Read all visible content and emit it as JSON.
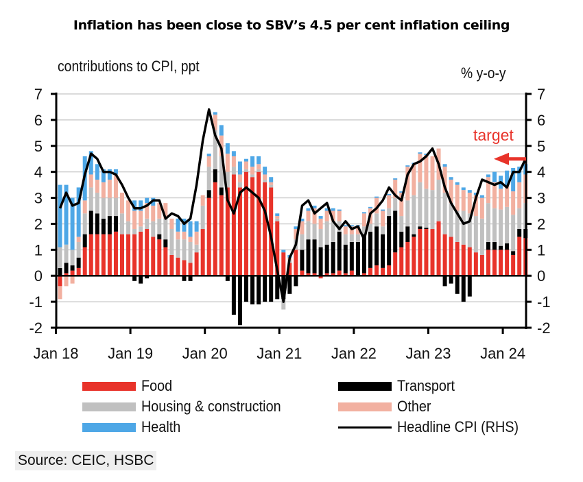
{
  "title": "Inflation has been close to SBV’s 4.5 per cent inflation ceiling",
  "source": "Source: CEIC, HSBC",
  "chart_data": {
    "type": "bar",
    "stacked": true,
    "title": "Inflation has been close to SBV’s 4.5 per cent inflation ceiling",
    "ylabel": "contributions  to CPI, ppt",
    "ylabel_right": "% y-o-y",
    "ylim": [
      -2,
      7
    ],
    "ylim_right": [
      -2,
      7
    ],
    "yticks": [
      "-2",
      "-1",
      "0",
      "1",
      "2",
      "3",
      "4",
      "5",
      "6",
      "7"
    ],
    "xtick_labels": [
      "Jan 18",
      "Jan 19",
      "Jan 20",
      "Jan 21",
      "Jan 22",
      "Jan 23",
      "Jan 24"
    ],
    "grid": true,
    "legend_position": "bottom",
    "annotation": {
      "text": "target",
      "value": 4.5,
      "color": "#e8332a"
    },
    "colors": {
      "Food": "#e8332a",
      "Transport": "#000000",
      "Housing & construction": "#c0c0c0",
      "Other": "#f2b0a0",
      "Health": "#4ea7e6",
      "Headline CPI (RHS)": "#000000"
    },
    "legend": [
      "Food",
      "Transport",
      "Housing & construction",
      "Other",
      "Health",
      "Headline CPI (RHS)"
    ],
    "x": [
      "Jan 18",
      "Feb 18",
      "Mar 18",
      "Apr 18",
      "May 18",
      "Jun 18",
      "Jul 18",
      "Aug 18",
      "Sep 18",
      "Oct 18",
      "Nov 18",
      "Dec 18",
      "Jan 19",
      "Feb 19",
      "Mar 19",
      "Apr 19",
      "May 19",
      "Jun 19",
      "Jul 19",
      "Aug 19",
      "Sep 19",
      "Oct 19",
      "Nov 19",
      "Dec 19",
      "Jan 20",
      "Feb 20",
      "Mar 20",
      "Apr 20",
      "May 20",
      "Jun 20",
      "Jul 20",
      "Aug 20",
      "Sep 20",
      "Oct 20",
      "Nov 20",
      "Dec 20",
      "Jan 21",
      "Feb 21",
      "Mar 21",
      "Apr 21",
      "May 21",
      "Jun 21",
      "Jul 21",
      "Aug 21",
      "Sep 21",
      "Oct 21",
      "Nov 21",
      "Dec 21",
      "Jan 22",
      "Feb 22",
      "Mar 22",
      "Apr 22",
      "May 22",
      "Jun 22",
      "Jul 22",
      "Aug 22",
      "Sep 22",
      "Oct 22",
      "Nov 22",
      "Dec 22",
      "Jan 23",
      "Feb 23",
      "Mar 23",
      "Apr 23",
      "May 23",
      "Jun 23",
      "Jul 23",
      "Aug 23",
      "Sep 23",
      "Oct 23",
      "Nov 23",
      "Dec 23",
      "Jan 24",
      "Feb 24",
      "Mar 24",
      "Apr 24"
    ],
    "series": [
      {
        "name": "Food",
        "values": [
          -0.4,
          0.1,
          0.2,
          0.3,
          1.1,
          1.6,
          1.6,
          1.6,
          1.6,
          1.7,
          1.6,
          1.6,
          1.6,
          1.7,
          1.8,
          1.5,
          1.4,
          1.1,
          0.8,
          0.7,
          0.6,
          0.5,
          0.9,
          1.8,
          3.0,
          3.6,
          3.1,
          3.4,
          3.9,
          3.4,
          4.0,
          3.8,
          4.0,
          3.6,
          3.4,
          2.1,
          0.9,
          0.5,
          1.0,
          0.2,
          0.1,
          0.1,
          -0.1,
          0.1,
          0.1,
          0.2,
          0.1,
          0.2,
          0.0,
          0.1,
          0.3,
          0.4,
          0.3,
          0.4,
          0.9,
          1.1,
          1.3,
          1.5,
          1.8,
          1.8,
          1.8,
          2.1,
          1.6,
          1.5,
          1.3,
          1.2,
          1.1,
          0.9,
          0.8,
          1.0,
          1.0,
          1.0,
          1.0,
          0.8,
          1.5,
          1.45
        ]
      },
      {
        "name": "Transport",
        "values": [
          0.3,
          0.4,
          0.2,
          0.4,
          0.5,
          0.9,
          0.8,
          0.6,
          0.7,
          0.6,
          0.0,
          0.0,
          -0.2,
          -0.3,
          -0.1,
          0.0,
          0.2,
          0.3,
          0.0,
          0.0,
          -0.2,
          -0.2,
          0.0,
          0.0,
          0.3,
          0.5,
          0.3,
          -0.2,
          -1.5,
          -1.9,
          -1.0,
          -1.1,
          -1.1,
          -1.0,
          -1.0,
          -0.9,
          -0.9,
          -0.7,
          -0.4,
          0.8,
          1.3,
          1.3,
          1.1,
          1.1,
          1.2,
          1.5,
          1.1,
          1.1,
          1.3,
          1.5,
          1.4,
          1.5,
          1.3,
          1.9,
          1.6,
          0.6,
          0.6,
          0.1,
          0.1,
          0.05,
          0.0,
          0.0,
          -0.4,
          -0.3,
          -0.7,
          -1.0,
          -0.8,
          0.0,
          0.0,
          0.3,
          0.3,
          0.15,
          0.25,
          0.15,
          0.3,
          0.35
        ]
      },
      {
        "name": "Housing & construction",
        "values": [
          0.8,
          0.7,
          0.6,
          0.6,
          0.8,
          0.9,
          0.8,
          0.8,
          0.7,
          0.7,
          0.8,
          0.5,
          0.2,
          0.2,
          0.4,
          0.6,
          0.6,
          0.8,
          1.0,
          0.7,
          0.8,
          0.8,
          0.3,
          0.9,
          0.9,
          1.5,
          1.2,
          0.6,
          0.3,
          0.2,
          0.1,
          0.1,
          0.1,
          0.1,
          0.1,
          0.1,
          -0.4,
          0.1,
          0.4,
          0.6,
          0.7,
          0.6,
          0.7,
          0.9,
          0.8,
          0.4,
          0.4,
          0.3,
          0.3,
          0.3,
          0.3,
          0.5,
          0.3,
          0.3,
          0.5,
          0.6,
          1.0,
          1.5,
          1.7,
          1.5,
          1.5,
          1.6,
          1.6,
          1.3,
          1.2,
          1.3,
          1.3,
          1.4,
          1.4,
          1.5,
          1.3,
          1.4,
          1.4,
          1.4,
          0.8,
          1.0
        ]
      },
      {
        "name": "Other",
        "values": [
          -0.5,
          -0.4,
          -0.3,
          0.2,
          0.5,
          0.5,
          0.5,
          0.6,
          0.7,
          0.9,
          0.8,
          0.8,
          0.7,
          0.6,
          0.6,
          0.6,
          0.6,
          0.6,
          0.4,
          0.3,
          0.3,
          0.2,
          0.5,
          0.4,
          0.4,
          0.6,
          0.8,
          0.7,
          0.4,
          0.3,
          0.3,
          0.3,
          0.2,
          0.2,
          0.1,
          0.1,
          0.0,
          0.1,
          0.4,
          0.5,
          0.4,
          0.6,
          0.4,
          0.4,
          0.4,
          0.4,
          0.3,
          0.3,
          0.3,
          0.5,
          0.6,
          0.6,
          0.6,
          0.5,
          0.7,
          0.9,
          1.3,
          1.2,
          1.1,
          1.3,
          1.3,
          1.2,
          1.0,
          0.9,
          1.0,
          0.8,
          0.8,
          0.8,
          0.8,
          1.0,
          1.0,
          0.8,
          0.8,
          0.9,
          1.0,
          1.1
        ]
      },
      {
        "name": "Health",
        "values": [
          2.4,
          2.3,
          2.0,
          1.9,
          1.7,
          0.9,
          0.6,
          0.5,
          0.4,
          0.2,
          0.0,
          0.0,
          0.4,
          0.4,
          0.2,
          0.3,
          0.0,
          0.0,
          0.0,
          0.5,
          0.5,
          0.6,
          0.4,
          0.0,
          0.1,
          0.1,
          0.4,
          0.4,
          0.2,
          0.5,
          0.1,
          0.4,
          0.3,
          0.3,
          0.2,
          0.1,
          0.1,
          0.1,
          0.1,
          0.1,
          0.1,
          0.1,
          0.1,
          0.1,
          0.1,
          0.05,
          0.05,
          0.05,
          0.05,
          0.05,
          0.05,
          0.05,
          0.05,
          0.05,
          0.05,
          0.05,
          0.05,
          0.05,
          0.05,
          0.05,
          0.0,
          0.0,
          0.1,
          0.1,
          0.1,
          0.1,
          0.1,
          0.1,
          0.1,
          0.1,
          0.4,
          0.5,
          0.6,
          0.9,
          0.6,
          0.4
        ]
      },
      {
        "name": "Headline CPI (RHS)",
        "type": "line",
        "values": [
          2.6,
          3.2,
          2.7,
          2.8,
          3.9,
          4.7,
          4.5,
          4.0,
          4.0,
          3.9,
          3.5,
          3.0,
          2.6,
          2.6,
          2.7,
          2.9,
          2.9,
          2.2,
          2.4,
          2.3,
          2.0,
          2.2,
          3.5,
          5.2,
          6.4,
          5.4,
          4.9,
          2.9,
          2.4,
          3.2,
          3.4,
          3.2,
          3.0,
          2.5,
          1.5,
          0.2,
          -1.0,
          0.7,
          1.2,
          2.7,
          2.9,
          2.4,
          2.6,
          2.8,
          2.1,
          1.8,
          2.1,
          1.8,
          1.9,
          1.4,
          2.4,
          2.6,
          2.9,
          3.4,
          3.1,
          2.9,
          3.9,
          4.3,
          4.4,
          4.6,
          4.9,
          4.3,
          3.4,
          2.8,
          2.4,
          2.0,
          2.1,
          3.0,
          3.7,
          3.6,
          3.5,
          3.6,
          3.4,
          4.0,
          4.0,
          4.5
        ]
      }
    ]
  },
  "legend": {
    "items": [
      {
        "label": "Food",
        "color": "#e8332a",
        "kind": "bar"
      },
      {
        "label": "Housing & construction",
        "color": "#c0c0c0",
        "kind": "bar"
      },
      {
        "label": "Health",
        "color": "#4ea7e6",
        "kind": "bar"
      },
      {
        "label": "Transport",
        "color": "#000000",
        "kind": "bar"
      },
      {
        "label": "Other",
        "color": "#f2b0a0",
        "kind": "bar"
      },
      {
        "label": "Headline CPI (RHS)",
        "color": "#000000",
        "kind": "line"
      }
    ]
  }
}
